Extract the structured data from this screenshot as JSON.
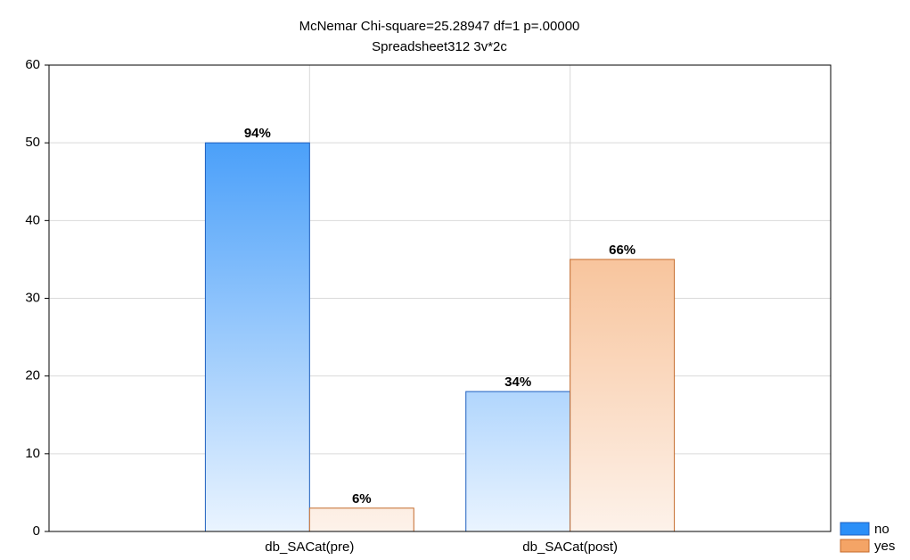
{
  "chart_data": {
    "type": "bar",
    "title": "McNemar Chi-square=25.28947 df=1 p=.00000",
    "subtitle": "Spreadsheet312 3v*2c",
    "categories": [
      "db_SACat(pre)",
      "db_SACat(post)"
    ],
    "series": [
      {
        "name": "no",
        "color": "#2b8ff8",
        "values": [
          50,
          18
        ],
        "data_labels": [
          "94%",
          "34%"
        ]
      },
      {
        "name": "yes",
        "color": "#f4a466",
        "values": [
          3,
          35
        ],
        "data_labels": [
          "6%",
          "66%"
        ]
      }
    ],
    "ylim": [
      0,
      60
    ],
    "yticks": [
      0,
      10,
      20,
      30,
      40,
      50,
      60
    ],
    "grid": true,
    "legend": "bottom-right"
  }
}
